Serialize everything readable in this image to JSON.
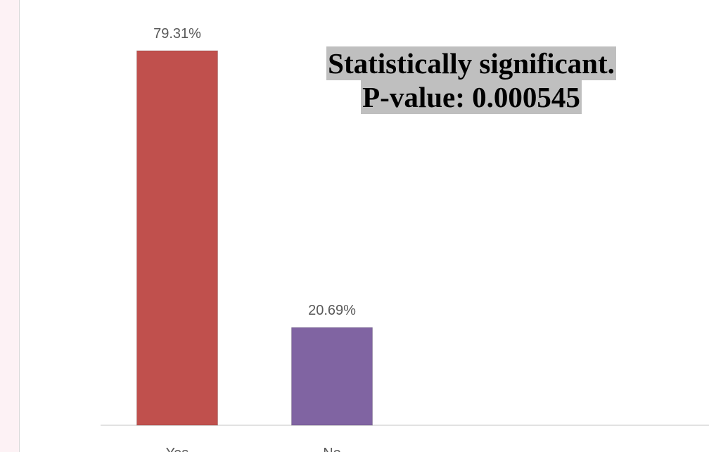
{
  "chart_data": {
    "type": "bar",
    "categories": [
      "Yes",
      "No"
    ],
    "values": [
      79.31,
      20.69
    ],
    "data_labels": [
      "79.31%",
      "20.69%"
    ],
    "colors": [
      "#c0504d",
      "#8064a2"
    ],
    "ylim": [
      0,
      79.31
    ],
    "grid": false,
    "legend": "none",
    "annotation": {
      "line1": "Statistically significant.",
      "line2": "P-value: 0.000545"
    }
  }
}
